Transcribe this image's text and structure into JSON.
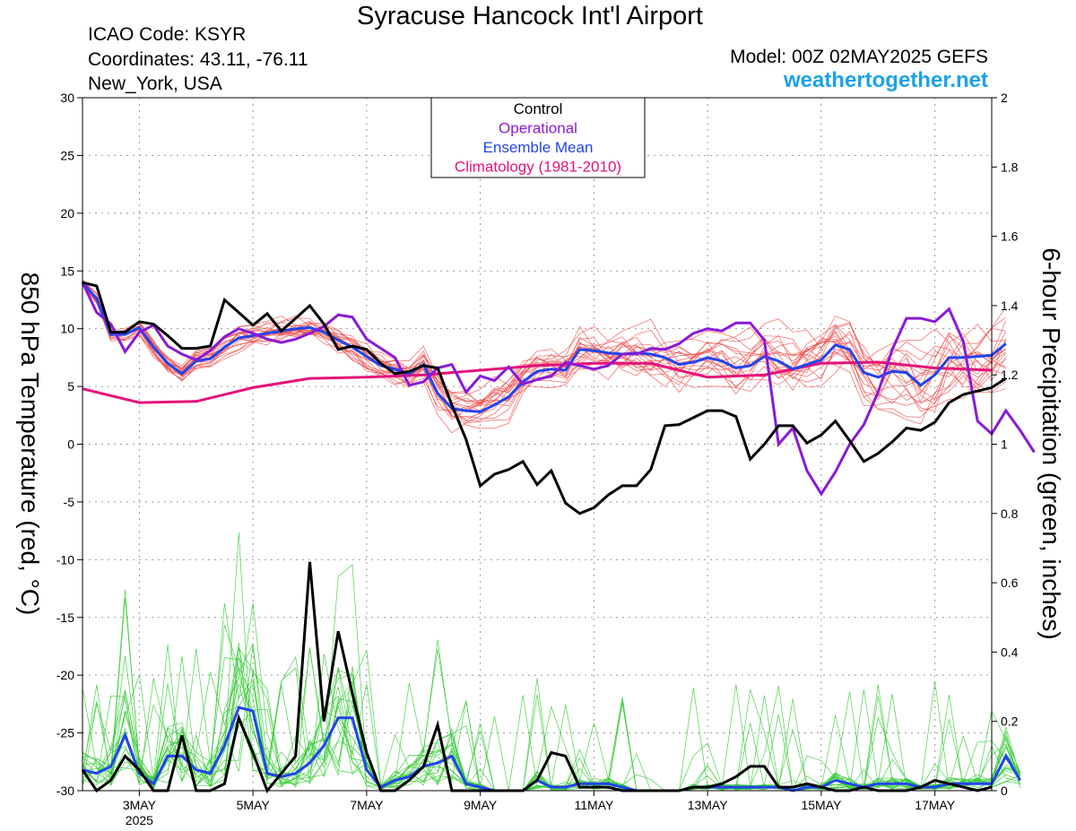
{
  "header": {
    "title": "Syracuse Hancock Int'l Airport",
    "icao": "ICAO Code: KSYR",
    "coordinates": "Coordinates: 43.11, -76.11",
    "location": "New_York, USA",
    "model": "Model: 00Z 02MAY2025 GEFS",
    "site": "weathertogether.net"
  },
  "colors": {
    "control": "#000000",
    "operational": "#8a1ad6",
    "ensemble_mean": "#2244ee",
    "climatology": "#e6127a",
    "member_temp": "#f04a4a",
    "member_precip": "#2ec82e",
    "site": "#1aa3e8"
  },
  "chart_data": {
    "type": "line",
    "ylabel": "850 hPa Temperature (red, °C)",
    "y2label": "6-hour Precipitation (green, inches)",
    "ylim": [
      -30,
      30
    ],
    "y2lim": [
      0,
      2
    ],
    "yticks": [
      "30",
      "25",
      "20",
      "15",
      "10",
      "5",
      "0",
      "-5",
      "-10",
      "-15",
      "-20",
      "-25",
      "-30"
    ],
    "y2ticks": [
      "2",
      "1.8",
      "1.6",
      "1.4",
      "1.2",
      "1",
      "0.8",
      "0.6",
      "0.4",
      "0.2",
      "0"
    ],
    "x_start_day": 2.0,
    "x_step_days": 0.25,
    "xlim_days": [
      2.0,
      18.0
    ],
    "xticks": [
      {
        "day": 3,
        "label": "3MAY",
        "sub": "2025"
      },
      {
        "day": 5,
        "label": "5MAY",
        "sub": ""
      },
      {
        "day": 7,
        "label": "7MAY",
        "sub": ""
      },
      {
        "day": 9,
        "label": "9MAY",
        "sub": ""
      },
      {
        "day": 11,
        "label": "11MAY",
        "sub": ""
      },
      {
        "day": 13,
        "label": "13MAY",
        "sub": ""
      },
      {
        "day": 15,
        "label": "15MAY",
        "sub": ""
      },
      {
        "day": 17,
        "label": "17MAY",
        "sub": ""
      }
    ],
    "grid": true,
    "legend": {
      "placement": "top-center",
      "entries": [
        {
          "label": "Control",
          "color": "#000000"
        },
        {
          "label": "Operational",
          "color": "#8a1ad6"
        },
        {
          "label": "Ensemble Mean",
          "color": "#2244ee"
        },
        {
          "label": "Climatology (1981-2010)",
          "color": "#e6127a"
        }
      ]
    },
    "temperature": {
      "control": [
        14,
        13.7,
        9.7,
        9.7,
        10.6,
        10.4,
        9.4,
        8.3,
        8.3,
        8.5,
        12.5,
        11.4,
        10.3,
        11.3,
        9.8,
        10.9,
        12,
        10.4,
        8.2,
        8.5,
        8.2,
        7,
        6.1,
        6.3,
        6.8,
        6.6,
        3.4,
        0.4,
        -3.6,
        -2.6,
        -2.2,
        -1.5,
        -3.5,
        -2.3,
        -5.1,
        -6,
        -5.5,
        -4.4,
        -3.6,
        -3.6,
        -2.2,
        1.6,
        1.7,
        2.3,
        2.9,
        2.9,
        2.4,
        -1.3,
        0,
        1.6,
        1.6,
        0.1,
        0.8,
        2,
        0.3,
        -1.5,
        -0.8,
        0.2,
        1.4,
        1.2,
        1.9,
        3.6,
        4.3,
        4.6,
        4.9,
        5.7
      ],
      "operational": [
        14,
        11.4,
        10.4,
        8,
        9.7,
        10.3,
        8.5,
        7.8,
        7.3,
        8.1,
        9.3,
        10,
        9.6,
        9.1,
        8.8,
        9.1,
        9.6,
        10.2,
        11.2,
        11,
        9.1,
        8.3,
        7.5,
        5.1,
        5.4,
        6.6,
        6.9,
        4.5,
        5.9,
        5.5,
        6.7,
        5.2,
        5.6,
        5.9,
        7.1,
        6.8,
        6.5,
        6.8,
        7.8,
        7.8,
        8.3,
        8.2,
        8.7,
        9.6,
        10,
        9.8,
        10.5,
        10.5,
        9,
        0,
        1.4,
        -2.3,
        -4.3,
        -2.4,
        0,
        1.7,
        4.5,
        8.2,
        10.9,
        10.9,
        10.6,
        11.7,
        8.9,
        2,
        0.9,
        2.9,
        1.2,
        -0.7
      ],
      "ensemble_mean": [
        14,
        12.6,
        9.5,
        9.5,
        10.1,
        8.4,
        7,
        6.1,
        7.2,
        7.4,
        8.4,
        9.2,
        9.4,
        9.6,
        9.8,
        10,
        10.1,
        9.7,
        9,
        8.4,
        7.6,
        6.8,
        6.5,
        6.1,
        6.9,
        4.4,
        3.1,
        2.9,
        2.8,
        3.4,
        4.1,
        5.4,
        6.3,
        6.5,
        6.4,
        8.2,
        8.1,
        7.9,
        7.8,
        7.9,
        7.8,
        7.5,
        6.9,
        7.1,
        7.5,
        7.2,
        6.6,
        6.8,
        7.6,
        7.2,
        6.5,
        6.9,
        7.3,
        8.6,
        8.2,
        6.2,
        5.8,
        6.3,
        6.2,
        5.1,
        6,
        7.5,
        7.5,
        7.6,
        7.7,
        8.7
      ],
      "climatology": [
        {
          "day": 2.0,
          "value": 4.8
        },
        {
          "day": 3.0,
          "value": 3.6
        },
        {
          "day": 4.0,
          "value": 3.7
        },
        {
          "day": 5.0,
          "value": 4.9
        },
        {
          "day": 6.0,
          "value": 5.7
        },
        {
          "day": 7.0,
          "value": 5.8
        },
        {
          "day": 8.0,
          "value": 6.0
        },
        {
          "day": 9.0,
          "value": 6.4
        },
        {
          "day": 10.0,
          "value": 6.8
        },
        {
          "day": 11.0,
          "value": 7.0
        },
        {
          "day": 12.0,
          "value": 7.0
        },
        {
          "day": 13.0,
          "value": 5.8
        },
        {
          "day": 14.0,
          "value": 6.0
        },
        {
          "day": 15.0,
          "value": 7.0
        },
        {
          "day": 16.0,
          "value": 7.1
        },
        {
          "day": 17.0,
          "value": 6.6
        },
        {
          "day": 18.0,
          "value": 6.4
        }
      ]
    },
    "precipitation": {
      "control": [
        0.06,
        0,
        0.03,
        0.1,
        0.06,
        0,
        0,
        0.16,
        0,
        0,
        0.02,
        0.21,
        0.11,
        0,
        0.05,
        0.1,
        0.66,
        0.2,
        0.46,
        0.28,
        0.11,
        0,
        0,
        0.03,
        0.07,
        0.19,
        0,
        0,
        0,
        0,
        0,
        0,
        0.03,
        0.11,
        0.1,
        0.01,
        0.01,
        0.01,
        0,
        0,
        0,
        0,
        0,
        0.01,
        0.01,
        0.02,
        0.04,
        0.07,
        0.07,
        0.01,
        0.01,
        0.02,
        0.01,
        0,
        0,
        0.01,
        0,
        0,
        0,
        0.01,
        0.03,
        0.02,
        0.01,
        0,
        0.01
      ],
      "ensemble_mean": [
        0.06,
        0.05,
        0.07,
        0.16,
        0.05,
        0.02,
        0.1,
        0.1,
        0.06,
        0.05,
        0.13,
        0.24,
        0.23,
        0.05,
        0.04,
        0.05,
        0.08,
        0.13,
        0.21,
        0.21,
        0.06,
        0.01,
        0.03,
        0.04,
        0.07,
        0.08,
        0.1,
        0.02,
        0.01,
        0,
        0,
        0,
        0.03,
        0.01,
        0.01,
        0.02,
        0.02,
        0.02,
        0.01,
        0,
        0,
        0,
        0,
        0.01,
        0.01,
        0.01,
        0.01,
        0.01,
        0.01,
        0.01,
        0,
        0.01,
        0.01,
        0.03,
        0.02,
        0.01,
        0.02,
        0.02,
        0.02,
        0.01,
        0.01,
        0.02,
        0.02,
        0.02,
        0.02,
        0.1,
        0.03
      ]
    }
  }
}
